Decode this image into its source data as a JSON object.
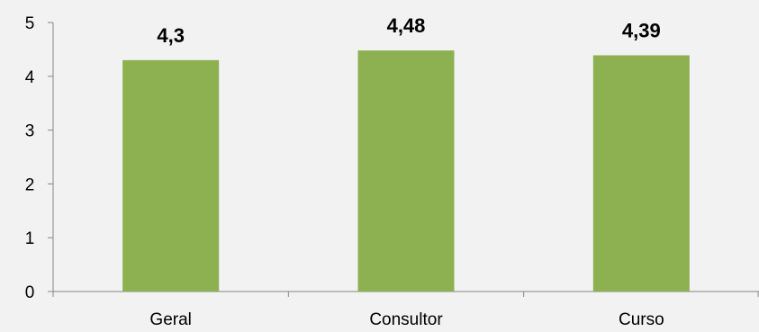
{
  "chart_data": {
    "type": "bar",
    "categories": [
      "Geral",
      "Consultor",
      "Curso"
    ],
    "values": [
      4.3,
      4.48,
      4.39
    ],
    "data_labels": [
      "4,3",
      "4,48",
      "4,39"
    ],
    "title": "",
    "xlabel": "",
    "ylabel": "",
    "ylim": [
      0,
      5
    ],
    "yticks": [
      "0",
      "1",
      "2",
      "3",
      "4",
      "5"
    ],
    "grid": false,
    "legend": "none",
    "bar_color": "#8db050",
    "background": "#f2f2f2"
  }
}
